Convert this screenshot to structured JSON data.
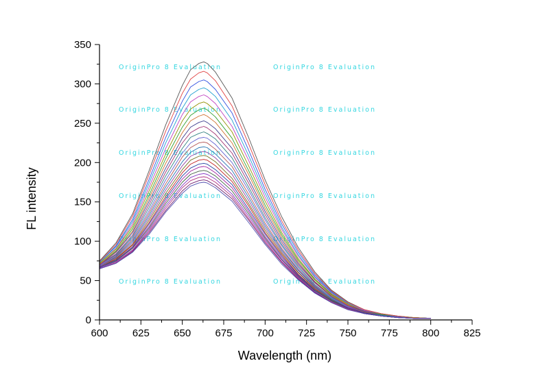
{
  "chart_data": {
    "type": "line",
    "xlabel": "Wavelength (nm)",
    "ylabel": "FL intensity",
    "xlim": [
      600,
      825
    ],
    "ylim": [
      0,
      350
    ],
    "x_ticks": [
      600,
      625,
      650,
      675,
      700,
      725,
      750,
      775,
      800,
      825
    ],
    "y_ticks": [
      0,
      50,
      100,
      150,
      200,
      250,
      300,
      350
    ],
    "grid": false,
    "legend": "none",
    "x": [
      600,
      610,
      620,
      630,
      640,
      650,
      655,
      660,
      663,
      665,
      670,
      680,
      690,
      700,
      710,
      720,
      730,
      740,
      750,
      760,
      770,
      780,
      790,
      800
    ],
    "series": [
      {
        "color": "#555555",
        "values": [
          75,
          98,
          135,
          190,
          248,
          298,
          318,
          326,
          328,
          326,
          315,
          282,
          232,
          178,
          131,
          92,
          61,
          38,
          23,
          13,
          8,
          5,
          3,
          2
        ]
      },
      {
        "color": "#e04040",
        "values": [
          74,
          96,
          132,
          185,
          240,
          288,
          306,
          314,
          316,
          314,
          304,
          272,
          224,
          172,
          126,
          89,
          59,
          37,
          22,
          13,
          8,
          5,
          3,
          2
        ]
      },
      {
        "color": "#3050e0",
        "values": [
          73,
          94,
          128,
          179,
          232,
          278,
          296,
          303,
          305,
          303,
          293,
          263,
          216,
          166,
          122,
          86,
          57,
          36,
          21,
          12,
          7,
          4,
          3,
          2
        ]
      },
      {
        "color": "#20a0d0",
        "values": [
          73,
          93,
          125,
          174,
          225,
          269,
          286,
          293,
          295,
          293,
          284,
          254,
          209,
          161,
          118,
          83,
          55,
          35,
          21,
          12,
          7,
          4,
          3,
          2
        ]
      },
      {
        "color": "#c040c0",
        "values": [
          72,
          91,
          122,
          169,
          218,
          261,
          277,
          284,
          286,
          284,
          275,
          246,
          203,
          156,
          115,
          81,
          54,
          34,
          20,
          12,
          7,
          4,
          3,
          2
        ]
      },
      {
        "color": "#909000",
        "values": [
          72,
          90,
          119,
          164,
          211,
          253,
          268,
          275,
          277,
          275,
          266,
          239,
          196,
          151,
          111,
          78,
          52,
          33,
          20,
          11,
          7,
          4,
          3,
          2
        ]
      },
      {
        "color": "#30a030",
        "values": [
          71,
          88,
          116,
          159,
          205,
          245,
          260,
          267,
          269,
          267,
          258,
          231,
          190,
          146,
          108,
          76,
          51,
          32,
          19,
          11,
          7,
          4,
          3,
          2
        ]
      },
      {
        "color": "#d07030",
        "values": [
          71,
          87,
          113,
          155,
          199,
          238,
          253,
          259,
          261,
          259,
          251,
          225,
          185,
          142,
          105,
          74,
          49,
          31,
          19,
          11,
          6,
          4,
          3,
          2
        ]
      },
      {
        "color": "#404090",
        "values": [
          70,
          86,
          111,
          151,
          193,
          231,
          245,
          251,
          253,
          251,
          243,
          218,
          179,
          138,
          102,
          72,
          48,
          30,
          18,
          11,
          6,
          4,
          2,
          2
        ]
      },
      {
        "color": "#a03070",
        "values": [
          70,
          84,
          108,
          147,
          188,
          225,
          238,
          244,
          246,
          244,
          236,
          212,
          174,
          134,
          99,
          70,
          47,
          30,
          18,
          10,
          6,
          4,
          2,
          2
        ]
      },
      {
        "color": "#308080",
        "values": [
          69,
          83,
          106,
          143,
          183,
          218,
          232,
          237,
          239,
          237,
          230,
          206,
          169,
          130,
          96,
          68,
          45,
          29,
          17,
          10,
          6,
          4,
          2,
          2
        ]
      },
      {
        "color": "#6060d0",
        "values": [
          69,
          82,
          104,
          139,
          178,
          212,
          225,
          231,
          232,
          231,
          223,
          200,
          165,
          127,
          94,
          66,
          44,
          28,
          17,
          10,
          6,
          4,
          2,
          2
        ]
      },
      {
        "color": "#b05050",
        "values": [
          68,
          81,
          102,
          136,
          173,
          207,
          219,
          225,
          226,
          225,
          217,
          195,
          160,
          123,
          91,
          64,
          43,
          27,
          16,
          10,
          6,
          3,
          2,
          2
        ]
      },
      {
        "color": "#2070b0",
        "values": [
          68,
          80,
          100,
          133,
          169,
          201,
          213,
          219,
          220,
          219,
          211,
          190,
          156,
          120,
          89,
          63,
          42,
          27,
          16,
          9,
          6,
          3,
          2,
          2
        ]
      },
      {
        "color": "#9040a0",
        "values": [
          68,
          79,
          98,
          130,
          165,
          196,
          208,
          213,
          214,
          213,
          206,
          185,
          152,
          117,
          87,
          61,
          41,
          26,
          16,
          9,
          5,
          3,
          2,
          2
        ]
      },
      {
        "color": "#707020",
        "values": [
          67,
          78,
          96,
          127,
          161,
          191,
          203,
          208,
          209,
          208,
          201,
          180,
          148,
          114,
          85,
          60,
          40,
          26,
          15,
          9,
          5,
          3,
          2,
          2
        ]
      },
      {
        "color": "#c02020",
        "values": [
          67,
          77,
          95,
          124,
          157,
          187,
          198,
          203,
          204,
          203,
          196,
          176,
          145,
          111,
          83,
          58,
          39,
          25,
          15,
          9,
          5,
          3,
          2,
          2
        ]
      },
      {
        "color": "#2040a0",
        "values": [
          67,
          76,
          93,
          122,
          154,
          183,
          193,
          198,
          199,
          198,
          191,
          172,
          141,
          109,
          81,
          57,
          38,
          25,
          15,
          9,
          5,
          3,
          2,
          2
        ]
      },
      {
        "color": "#a020a0",
        "values": [
          66,
          75,
          92,
          119,
          151,
          179,
          189,
          194,
          195,
          194,
          187,
          168,
          138,
          106,
          79,
          56,
          37,
          24,
          14,
          8,
          5,
          3,
          2,
          2
        ]
      },
      {
        "color": "#406040",
        "values": [
          66,
          75,
          91,
          117,
          148,
          175,
          185,
          189,
          190,
          189,
          183,
          164,
          135,
          104,
          77,
          55,
          37,
          24,
          14,
          8,
          5,
          3,
          2,
          2
        ]
      },
      {
        "color": "#8030c0",
        "values": [
          66,
          74,
          89,
          115,
          145,
          171,
          181,
          185,
          186,
          185,
          179,
          160,
          132,
          102,
          76,
          54,
          36,
          23,
          14,
          8,
          5,
          3,
          2,
          2
        ]
      },
      {
        "color": "#b03080",
        "values": [
          65,
          73,
          88,
          113,
          142,
          168,
          177,
          181,
          182,
          181,
          175,
          157,
          129,
          100,
          74,
          53,
          35,
          23,
          14,
          8,
          5,
          3,
          2,
          2
        ]
      },
      {
        "color": "#702070",
        "values": [
          65,
          72,
          87,
          111,
          139,
          164,
          173,
          177,
          178,
          177,
          171,
          154,
          127,
          98,
          73,
          52,
          35,
          22,
          13,
          8,
          5,
          3,
          2,
          2
        ]
      },
      {
        "color": "#5050b0",
        "values": [
          65,
          72,
          86,
          109,
          137,
          161,
          170,
          174,
          175,
          174,
          168,
          151,
          124,
          96,
          71,
          51,
          34,
          22,
          13,
          8,
          5,
          3,
          2,
          2
        ]
      }
    ]
  },
  "watermark": "OriginPro 8 Evaluation"
}
